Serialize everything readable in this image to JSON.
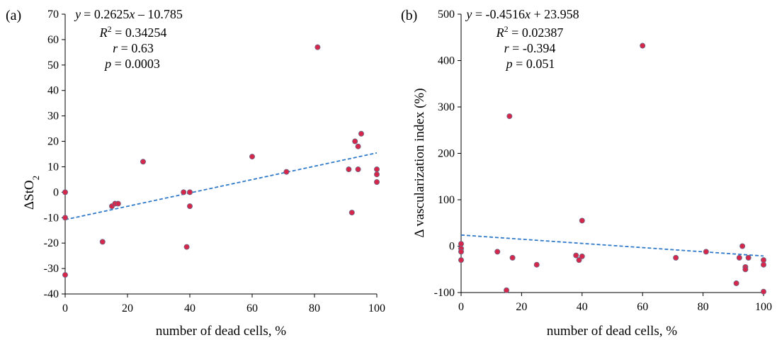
{
  "chart_data": [
    {
      "type": "scatter",
      "panel_label": "(a)",
      "xlabel": "number of dead cells, %",
      "ylabel_main": "ΔStO",
      "ylabel_sub": "2",
      "xlim": [
        0,
        100
      ],
      "ylim": [
        -40,
        70
      ],
      "xticks": [
        0,
        20,
        40,
        60,
        80,
        100
      ],
      "yticks": [
        -40,
        -30,
        -20,
        -10,
        0,
        10,
        20,
        30,
        40,
        50,
        60,
        70
      ],
      "trendline": {
        "slope": 0.2625,
        "intercept": -10.785,
        "style": "dashed"
      },
      "annotation": {
        "eq_var": "y",
        "eq_rhs": "= 0.2625",
        "eq_x": "x",
        "eq_tail": " – 10.785",
        "r2_label": "R",
        "r2_sup": "2",
        "r2_value": " = 0.34254",
        "r_label": "r",
        "r_value": " = 0.63",
        "p_label": "p",
        "p_value": " = 0.0003"
      },
      "points": [
        {
          "x": 0,
          "y": 0
        },
        {
          "x": 0,
          "y": -10
        },
        {
          "x": 0,
          "y": -32.5
        },
        {
          "x": 12,
          "y": -19.5
        },
        {
          "x": 15,
          "y": -5.5
        },
        {
          "x": 16,
          "y": -4.5
        },
        {
          "x": 17,
          "y": -4.5
        },
        {
          "x": 25,
          "y": 12
        },
        {
          "x": 38,
          "y": 0
        },
        {
          "x": 39,
          "y": -21.5
        },
        {
          "x": 40,
          "y": 0
        },
        {
          "x": 40,
          "y": -5.5
        },
        {
          "x": 60,
          "y": 14
        },
        {
          "x": 71,
          "y": 8
        },
        {
          "x": 81,
          "y": 57
        },
        {
          "x": 91,
          "y": 9
        },
        {
          "x": 92,
          "y": -8
        },
        {
          "x": 93,
          "y": 20
        },
        {
          "x": 94,
          "y": 18
        },
        {
          "x": 94,
          "y": 9
        },
        {
          "x": 95,
          "y": 23
        },
        {
          "x": 100,
          "y": 9
        },
        {
          "x": 100,
          "y": 7
        },
        {
          "x": 100,
          "y": 4
        }
      ],
      "marker_color": "#d6274a",
      "marker_edge": "#6a6a8a",
      "trend_color": "#2f79c9",
      "grid": false
    },
    {
      "type": "scatter",
      "panel_label": "(b)",
      "xlabel": "number of dead cells, %",
      "ylabel_main": "Δ vascularization index (%)",
      "ylabel_sub": "",
      "xlim": [
        0,
        100
      ],
      "ylim": [
        -100,
        500
      ],
      "xticks": [
        0,
        20,
        40,
        60,
        80,
        100
      ],
      "yticks": [
        -100,
        0,
        100,
        200,
        300,
        400,
        500
      ],
      "trendline": {
        "slope": -0.4516,
        "intercept": 23.958,
        "style": "dashed"
      },
      "annotation": {
        "eq_var": "y",
        "eq_rhs": " = -0.4516",
        "eq_x": "x",
        "eq_tail": " + 23.958",
        "r2_label": "R",
        "r2_sup": "2",
        "r2_value": " = 0.02387",
        "r_label": "r",
        "r_value": " = -0.394",
        "p_label": "p",
        "p_value": " = 0.051"
      },
      "points": [
        {
          "x": 0,
          "y": 5
        },
        {
          "x": 0,
          "y": -5
        },
        {
          "x": 0,
          "y": -12
        },
        {
          "x": 0,
          "y": -30
        },
        {
          "x": 12,
          "y": -12
        },
        {
          "x": 15,
          "y": -95
        },
        {
          "x": 16,
          "y": 280
        },
        {
          "x": 17,
          "y": -25
        },
        {
          "x": 25,
          "y": -40
        },
        {
          "x": 38,
          "y": -20
        },
        {
          "x": 39,
          "y": -30
        },
        {
          "x": 40,
          "y": 55
        },
        {
          "x": 40,
          "y": -22
        },
        {
          "x": 60,
          "y": 432
        },
        {
          "x": 71,
          "y": -25
        },
        {
          "x": 81,
          "y": -12
        },
        {
          "x": 91,
          "y": -80
        },
        {
          "x": 92,
          "y": -25
        },
        {
          "x": 93,
          "y": 0
        },
        {
          "x": 94,
          "y": -45
        },
        {
          "x": 94,
          "y": -50
        },
        {
          "x": 95,
          "y": -25
        },
        {
          "x": 100,
          "y": -30
        },
        {
          "x": 100,
          "y": -40
        },
        {
          "x": 100,
          "y": -98
        }
      ],
      "marker_color": "#d6274a",
      "marker_edge": "#6a6a8a",
      "trend_color": "#2f79c9",
      "grid": false
    }
  ]
}
